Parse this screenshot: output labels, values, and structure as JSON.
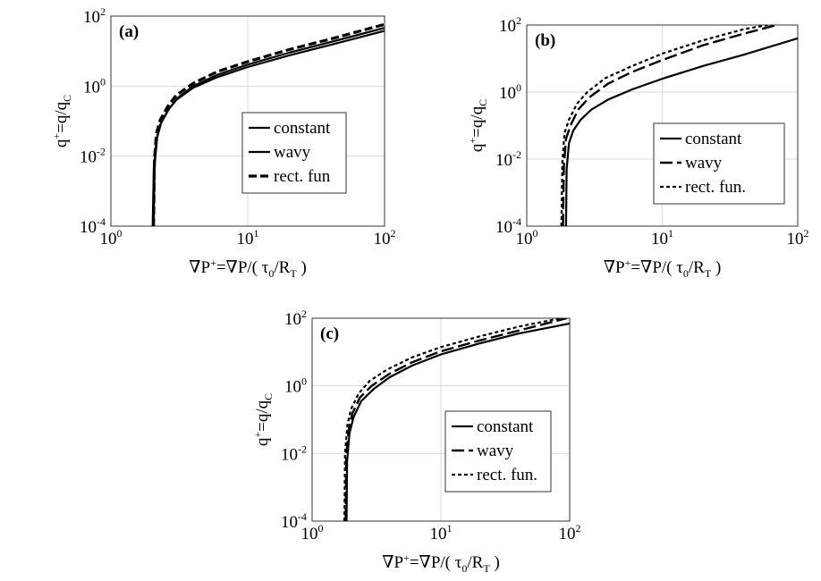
{
  "chart_data": [
    {
      "type": "line",
      "panel_label": "(a)",
      "xlabel": "∇P⁺=∇P/( τ₀/R_T )",
      "ylabel": "q⁺=q/q_C",
      "xscale": "log",
      "yscale": "log",
      "xlim": [
        1,
        100
      ],
      "ylim": [
        0.0001,
        100
      ],
      "grid": true,
      "legend_position": "center-right",
      "series": [
        {
          "name": "constant",
          "style": "solid",
          "x": [
            2.02,
            2.06,
            2.15,
            2.3,
            2.6,
            3,
            4,
            6,
            10,
            20,
            40,
            100
          ],
          "y": [
            0.0001,
            0.005,
            0.03,
            0.08,
            0.2,
            0.4,
            0.9,
            1.8,
            3.5,
            7.5,
            15,
            38
          ]
        },
        {
          "name": "wavy",
          "style": "solid",
          "x": [
            2.05,
            2.09,
            2.18,
            2.33,
            2.65,
            3.05,
            4,
            6,
            10,
            20,
            40,
            100
          ],
          "y": [
            0.0001,
            0.006,
            0.035,
            0.09,
            0.22,
            0.45,
            1.0,
            2.1,
            4.1,
            9,
            18,
            46
          ]
        },
        {
          "name": "rect. fun",
          "style": "dashed",
          "x": [
            2.05,
            2.08,
            2.15,
            2.3,
            2.6,
            3,
            4,
            6,
            10,
            20,
            40,
            100
          ],
          "y": [
            0.0001,
            0.008,
            0.045,
            0.11,
            0.26,
            0.55,
            1.2,
            2.6,
            5,
            11,
            22,
            58
          ]
        }
      ]
    },
    {
      "type": "line",
      "panel_label": "(b)",
      "xlabel": "∇P⁺=∇P/( τ₀/R_T )",
      "ylabel": "q⁺=q/q_C",
      "xscale": "log",
      "yscale": "log",
      "xlim": [
        1,
        100
      ],
      "ylim": [
        0.0001,
        100
      ],
      "grid": true,
      "legend_position": "bottom-right",
      "series": [
        {
          "name": "constant",
          "style": "solid",
          "x": [
            1.95,
            1.97,
            2.05,
            2.2,
            2.5,
            3,
            4,
            6,
            10,
            20,
            40,
            100
          ],
          "y": [
            0.0001,
            0.005,
            0.03,
            0.07,
            0.15,
            0.3,
            0.6,
            1.2,
            2.5,
            6,
            13,
            40
          ]
        },
        {
          "name": "wavy",
          "style": "longdash",
          "x": [
            1.85,
            1.88,
            1.95,
            2.1,
            2.4,
            2.9,
            4,
            6,
            10,
            20,
            40,
            70
          ],
          "y": [
            0.0001,
            0.006,
            0.04,
            0.1,
            0.3,
            0.7,
            1.8,
            4,
            9,
            25,
            55,
            100
          ]
        },
        {
          "name": "rect. fun.",
          "style": "dotted",
          "x": [
            1.8,
            1.83,
            1.9,
            2.05,
            2.35,
            2.8,
            3.8,
            6,
            10,
            20,
            40,
            60
          ],
          "y": [
            0.0001,
            0.008,
            0.06,
            0.15,
            0.45,
            1.0,
            2.6,
            6,
            14,
            35,
            75,
            100
          ]
        }
      ]
    },
    {
      "type": "line",
      "panel_label": "(c)",
      "xlabel": "∇P⁺=∇P/( τ₀/R_T )",
      "ylabel": "q⁺=q/q_C",
      "xscale": "log",
      "yscale": "log",
      "xlim": [
        1,
        100
      ],
      "ylim": [
        0.0001,
        100
      ],
      "grid": true,
      "legend_position": "bottom-right",
      "series": [
        {
          "name": "constant",
          "style": "solid",
          "x": [
            1.85,
            1.87,
            1.95,
            2.1,
            2.4,
            3,
            4,
            6,
            10,
            20,
            40,
            100
          ],
          "y": [
            0.0001,
            0.006,
            0.04,
            0.12,
            0.35,
            0.8,
            1.8,
            4,
            8.5,
            18,
            35,
            70
          ]
        },
        {
          "name": "wavy",
          "style": "longdash",
          "x": [
            1.82,
            1.84,
            1.92,
            2.05,
            2.35,
            2.9,
            4,
            6,
            10,
            20,
            40,
            95
          ],
          "y": [
            0.0001,
            0.008,
            0.05,
            0.15,
            0.45,
            1.0,
            2.3,
            5,
            10.5,
            22,
            43,
            100
          ]
        },
        {
          "name": "rect. fun.",
          "style": "dotted",
          "x": [
            1.78,
            1.8,
            1.88,
            2.0,
            2.3,
            2.8,
            3.8,
            6,
            10,
            20,
            40,
            85
          ],
          "y": [
            0.0001,
            0.01,
            0.07,
            0.2,
            0.6,
            1.4,
            3,
            7,
            14,
            29,
            56,
            100
          ]
        }
      ]
    }
  ]
}
